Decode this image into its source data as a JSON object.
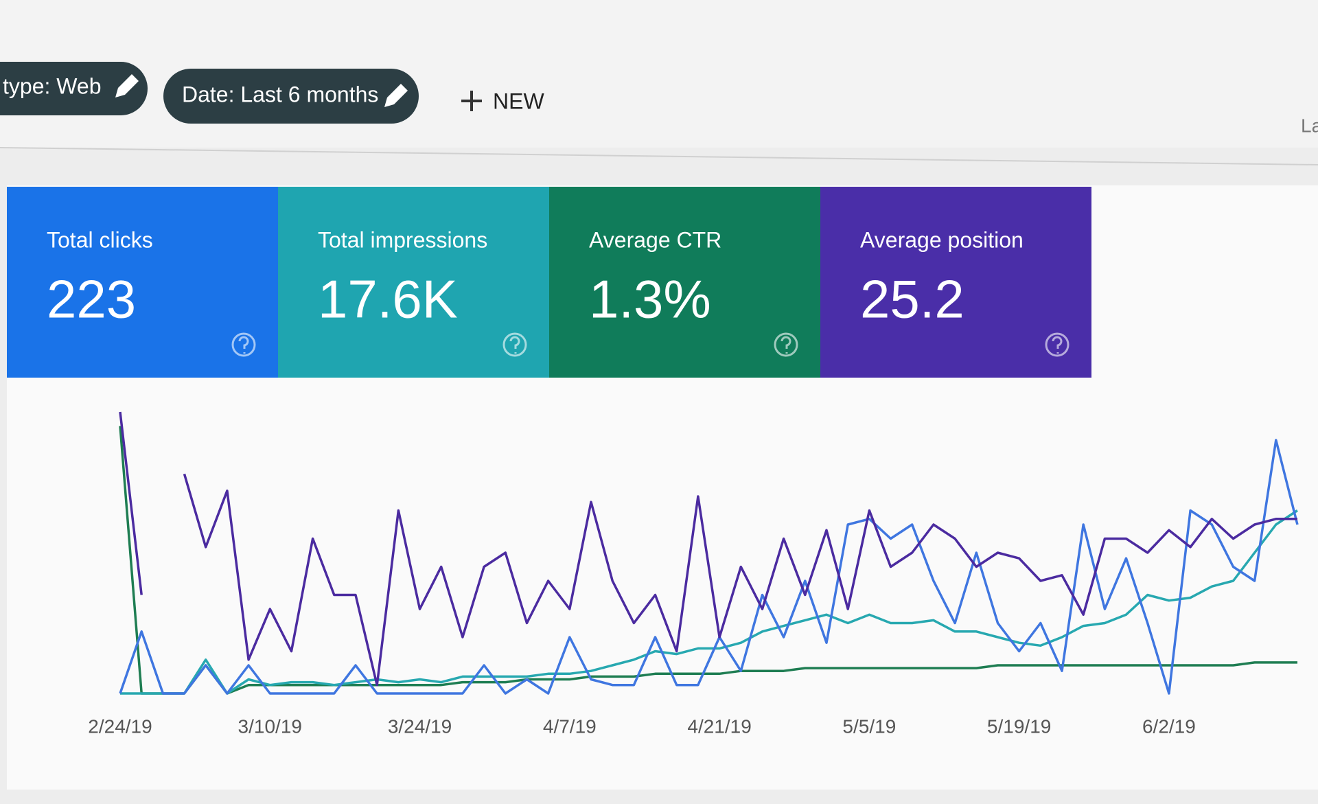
{
  "header": {
    "chips": [
      "type: Web",
      "Date: Last 6 months"
    ],
    "new_button": "NEW",
    "cut_text": "La"
  },
  "metrics": [
    {
      "label": "Total clicks",
      "value": "223",
      "color": "#1a73e8"
    },
    {
      "label": "Total impressions",
      "value": "17.6K",
      "color": "#1fa5b0"
    },
    {
      "label": "Average CTR",
      "value": "1.3%",
      "color": "#107c5a"
    },
    {
      "label": "Average position",
      "value": "25.2",
      "color": "#4a2ea8"
    }
  ],
  "chart_data": {
    "type": "line",
    "categories": [
      "2/24/19",
      null,
      null,
      null,
      null,
      null,
      null,
      "3/10/19",
      null,
      null,
      null,
      null,
      null,
      null,
      "3/24/19",
      null,
      null,
      null,
      null,
      null,
      null,
      "4/7/19",
      null,
      null,
      null,
      null,
      null,
      null,
      "4/21/19",
      null,
      null,
      null,
      null,
      null,
      null,
      "5/5/19",
      null,
      null,
      null,
      null,
      null,
      null,
      "5/19/19",
      null,
      null,
      null,
      null,
      null,
      null,
      "6/2/19",
      null,
      null,
      null,
      null,
      null,
      null
    ],
    "series": [
      {
        "color": "#1e7d52",
        "values": [
          95,
          0,
          0,
          0,
          10,
          0,
          3,
          3,
          3,
          3,
          3,
          3,
          3,
          3,
          3,
          3,
          4,
          4,
          4,
          5,
          5,
          5,
          6,
          6,
          6,
          7,
          7,
          7,
          7,
          8,
          8,
          8,
          9,
          9,
          9,
          9,
          9,
          9,
          9,
          9,
          9,
          10,
          10,
          10,
          10,
          10,
          10,
          10,
          10,
          10,
          10,
          10,
          10,
          11,
          11,
          11
        ]
      },
      {
        "color": "#27a8b0",
        "values": [
          0,
          0,
          0,
          0,
          12,
          0,
          5,
          3,
          4,
          4,
          3,
          4,
          5,
          4,
          5,
          4,
          6,
          6,
          6,
          6,
          7,
          7,
          8,
          10,
          12,
          15,
          14,
          16,
          16,
          18,
          22,
          24,
          26,
          28,
          25,
          28,
          25,
          25,
          26,
          22,
          22,
          20,
          18,
          17,
          20,
          24,
          25,
          28,
          35,
          33,
          34,
          38,
          40,
          50,
          60,
          65
        ]
      },
      {
        "color": "#3f76e0",
        "values": [
          0,
          22,
          0,
          0,
          10,
          0,
          10,
          0,
          0,
          0,
          0,
          10,
          0,
          0,
          0,
          0,
          0,
          10,
          0,
          5,
          0,
          20,
          5,
          3,
          3,
          20,
          3,
          3,
          20,
          8,
          35,
          20,
          40,
          18,
          60,
          62,
          55,
          60,
          40,
          25,
          50,
          25,
          15,
          25,
          8,
          60,
          30,
          48,
          25,
          0,
          65,
          60,
          45,
          40,
          90,
          60
        ]
      },
      {
        "color": "#4b2ba0",
        "values": [
          100,
          35,
          null,
          78,
          52,
          72,
          12,
          30,
          15,
          55,
          35,
          35,
          3,
          65,
          30,
          45,
          20,
          45,
          50,
          25,
          40,
          30,
          68,
          40,
          25,
          35,
          15,
          70,
          20,
          45,
          30,
          55,
          35,
          58,
          30,
          65,
          45,
          50,
          60,
          55,
          45,
          50,
          48,
          40,
          42,
          28,
          55,
          55,
          50,
          58,
          52,
          62,
          55,
          60,
          62,
          62
        ]
      }
    ]
  }
}
